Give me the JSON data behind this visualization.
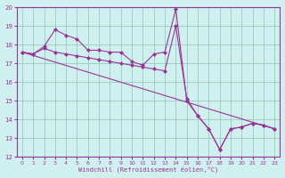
{
  "xlabel": "Windchill (Refroidissement éolien,°C)",
  "background_color": "#cff0ee",
  "grid_color": "#99ccbb",
  "line_color": "#993399",
  "xlim": [
    -0.5,
    23.5
  ],
  "ylim": [
    12,
    20
  ],
  "xticks": [
    0,
    1,
    2,
    3,
    4,
    5,
    6,
    7,
    8,
    9,
    10,
    11,
    12,
    13,
    14,
    15,
    16,
    17,
    18,
    19,
    20,
    21,
    22,
    23
  ],
  "yticks": [
    12,
    13,
    14,
    15,
    16,
    17,
    18,
    19,
    20
  ],
  "line1_x": [
    0,
    1,
    2,
    3,
    4,
    5,
    6,
    7,
    8,
    9,
    10,
    11,
    12,
    13,
    14,
    15,
    16,
    17,
    18,
    19,
    20,
    21,
    22,
    23
  ],
  "line1_y": [
    17.6,
    17.5,
    17.9,
    18.8,
    18.5,
    18.3,
    17.7,
    17.7,
    17.6,
    17.6,
    17.1,
    16.9,
    17.5,
    17.6,
    19.9,
    15.0,
    14.2,
    13.5,
    12.4,
    13.5,
    13.6,
    13.8,
    13.7,
    13.5
  ],
  "line2_x": [
    0,
    1,
    2,
    3,
    4,
    5,
    6,
    7,
    8,
    9,
    10,
    11,
    12,
    13,
    14,
    15,
    16,
    17,
    18,
    19,
    20,
    21,
    22,
    23
  ],
  "line2_y": [
    17.6,
    17.5,
    17.8,
    17.6,
    17.5,
    17.4,
    17.3,
    17.2,
    17.1,
    17.0,
    16.9,
    16.8,
    16.7,
    16.6,
    19.0,
    15.1,
    14.2,
    13.5,
    12.4,
    13.5,
    13.6,
    13.8,
    13.7,
    13.5
  ],
  "line3_x": [
    0,
    23
  ],
  "line3_y": [
    17.6,
    13.5
  ]
}
